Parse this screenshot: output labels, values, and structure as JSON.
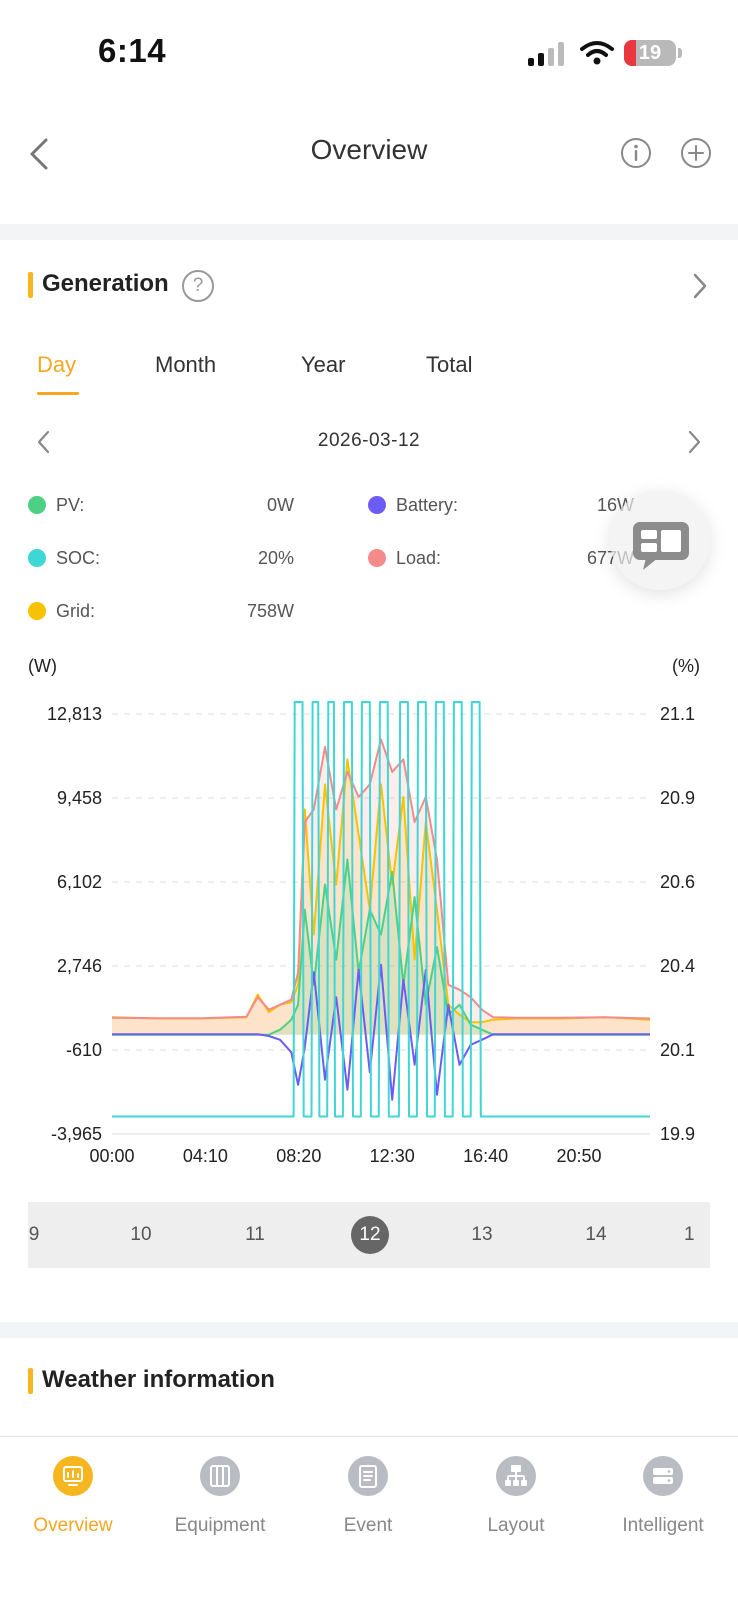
{
  "status_bar": {
    "time": "6:14",
    "battery_level": "19"
  },
  "header": {
    "title": "Overview"
  },
  "generation": {
    "title": "Generation",
    "help_glyph": "?",
    "tabs": [
      "Day",
      "Month",
      "Year",
      "Total"
    ],
    "active_tab": "Day",
    "date": "2026-03-12",
    "legend": [
      {
        "label": "PV:",
        "value": "0W",
        "color": "#4cd184"
      },
      {
        "label": "Battery:",
        "value": "16W",
        "color": "#6b5cf5"
      },
      {
        "label": "SOC:",
        "value": "20%",
        "color": "#3fd6d6"
      },
      {
        "label": "Load:",
        "value": "677W",
        "color": "#f58a8a"
      },
      {
        "label": "Grid:",
        "value": "758W",
        "color": "#f7c300"
      }
    ]
  },
  "chart_data": {
    "type": "line",
    "left_unit": "(W)",
    "right_unit": "(%)",
    "y_left_ticks": [
      "12,813",
      "9,458",
      "6,102",
      "2,746",
      "-610",
      "-3,965"
    ],
    "y_right_ticks": [
      "21.1",
      "20.9",
      "20.6",
      "20.4",
      "20.1",
      "19.9"
    ],
    "x_ticks": [
      "00:00",
      "04:10",
      "08:20",
      "12:30",
      "16:40",
      "20:50"
    ],
    "ylim_left": [
      -3965,
      12813
    ],
    "ylim_right": [
      19.9,
      21.1
    ],
    "xlim_hours": [
      0,
      24
    ],
    "grid": true,
    "series": [
      {
        "name": "Grid",
        "color": "#f7c300",
        "x": [
          0,
          2,
          4,
          6,
          6.5,
          7,
          7.5,
          8,
          8.3,
          8.6,
          9,
          9.5,
          10,
          10.5,
          11,
          11.5,
          12,
          12.5,
          13,
          13.5,
          14,
          14.5,
          15,
          15.5,
          16,
          16.5,
          17,
          18,
          20,
          22,
          24
        ],
        "y": [
          700,
          650,
          650,
          700,
          1600,
          900,
          1200,
          1300,
          2000,
          9000,
          4000,
          10000,
          6000,
          11000,
          8000,
          5000,
          10000,
          6000,
          9500,
          3000,
          8500,
          5000,
          1200,
          800,
          500,
          500,
          600,
          650,
          650,
          700,
          600
        ]
      },
      {
        "name": "Load",
        "color": "#f58a8a",
        "x": [
          0,
          2,
          4,
          6,
          6.5,
          7,
          7.5,
          8,
          8.3,
          8.6,
          9,
          9.5,
          10,
          10.5,
          11,
          11.5,
          12,
          12.5,
          13,
          13.5,
          14,
          14.5,
          15,
          15.5,
          16,
          16.5,
          17,
          18,
          20,
          22,
          24
        ],
        "y": [
          680,
          660,
          660,
          720,
          1500,
          1000,
          1200,
          1400,
          2500,
          8500,
          9000,
          11500,
          9000,
          10500,
          9500,
          10000,
          11800,
          10500,
          11000,
          8500,
          9500,
          7000,
          2000,
          1800,
          1500,
          1000,
          700,
          680,
          680,
          700,
          650
        ]
      },
      {
        "name": "PV",
        "color": "#4cd184",
        "x": [
          0,
          7,
          7.5,
          8,
          8.3,
          8.6,
          9,
          9.5,
          10,
          10.5,
          11,
          11.5,
          12,
          12.5,
          13,
          13.5,
          14,
          14.5,
          15,
          15.5,
          16,
          16.5,
          17,
          24
        ],
        "y": [
          0,
          0,
          200,
          600,
          1200,
          5000,
          2000,
          6000,
          3000,
          7000,
          2500,
          5000,
          4000,
          6500,
          2000,
          5500,
          1200,
          3500,
          800,
          1200,
          400,
          200,
          0,
          0
        ]
      },
      {
        "name": "Battery",
        "color": "#6b5cf5",
        "x": [
          0,
          6.5,
          7,
          7.5,
          8,
          8.3,
          8.6,
          9,
          9.5,
          10,
          10.5,
          11,
          11.5,
          12,
          12.5,
          13,
          13.5,
          14,
          14.5,
          15,
          15.5,
          16,
          16.5,
          17,
          24
        ],
        "y": [
          16,
          16,
          -50,
          -200,
          -700,
          -2000,
          -500,
          2500,
          -1800,
          1500,
          -2200,
          2600,
          -1500,
          2800,
          -2600,
          2200,
          -1200,
          2600,
          -2400,
          1200,
          -1200,
          -400,
          -200,
          16,
          16
        ]
      },
      {
        "name": "SOC",
        "color": "#3fd6d6",
        "x": [
          0,
          8.1,
          8.15,
          8.5,
          8.55,
          8.9,
          8.95,
          9.2,
          9.25,
          9.6,
          9.65,
          9.9,
          9.95,
          10.3,
          10.35,
          10.7,
          10.75,
          11.1,
          11.15,
          11.5,
          11.55,
          11.9,
          11.95,
          12.3,
          12.35,
          12.8,
          12.85,
          13.2,
          13.25,
          13.6,
          13.65,
          14,
          14.05,
          14.4,
          14.45,
          14.8,
          14.85,
          15.2,
          15.25,
          15.6,
          15.65,
          16,
          16.05,
          16.4,
          16.45,
          16.8,
          16.85,
          24
        ],
        "y": [
          19.95,
          19.95,
          21.15,
          21.15,
          19.95,
          19.95,
          21.15,
          21.15,
          19.95,
          19.95,
          21.15,
          21.15,
          19.95,
          19.95,
          21.15,
          21.15,
          19.95,
          19.95,
          21.15,
          21.15,
          19.95,
          19.95,
          21.15,
          21.15,
          19.95,
          19.95,
          21.15,
          21.15,
          19.95,
          19.95,
          21.15,
          21.15,
          19.95,
          19.95,
          21.15,
          21.15,
          19.95,
          19.95,
          21.15,
          21.15,
          19.95,
          19.95,
          21.15,
          21.15,
          19.95,
          19.95,
          19.95,
          19.95
        ]
      }
    ]
  },
  "date_strip": {
    "items": [
      "9",
      "10",
      "11",
      "12",
      "13",
      "14",
      "1"
    ],
    "selected": "12"
  },
  "weather": {
    "title": "Weather information"
  },
  "bottom_nav": {
    "items": [
      "Overview",
      "Equipment",
      "Event",
      "Layout",
      "Intelligent"
    ],
    "active": "Overview"
  }
}
